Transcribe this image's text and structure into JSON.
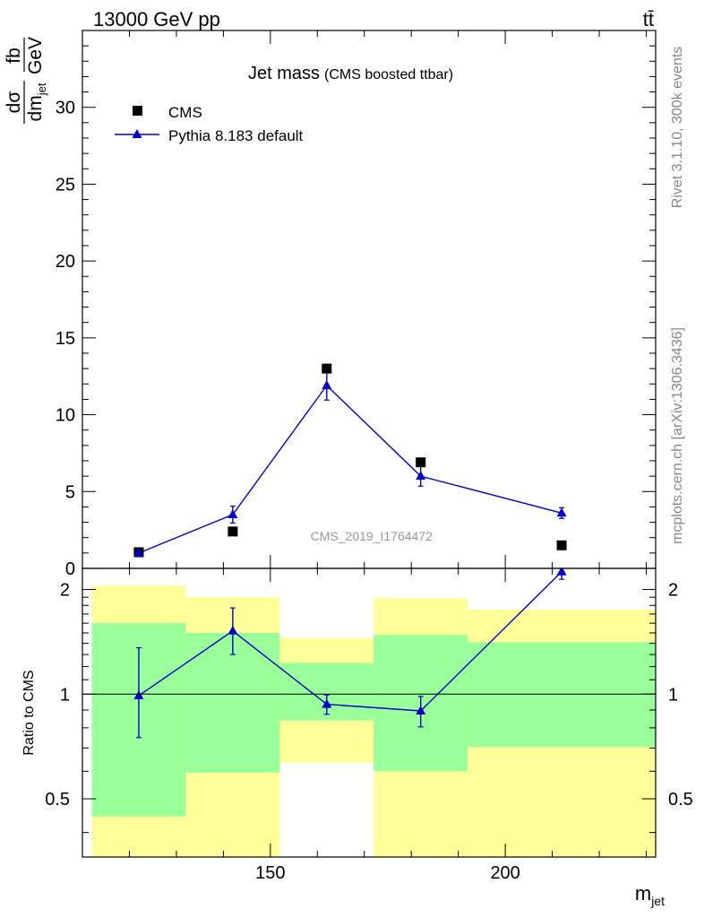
{
  "header": {
    "energy_label": "13000 GeV pp",
    "process_label": "tt̄"
  },
  "side_labels": {
    "rivet": "Rivet 3.1.10,  300k events",
    "mcplots": "mcplots.cern.ch [arXiv:1306.3436]"
  },
  "colors": {
    "mc": "#0000cc",
    "data": "#000000",
    "band_inner": "#99ff99",
    "band_outer": "#ffff99"
  },
  "chart_data": [
    {
      "type": "scatter",
      "panel": "main",
      "title": "Jet mass",
      "subtitle": "(CMS boosted ttbar)",
      "watermark": "CMS_2019_I1764472",
      "ylabel_num": "dσ",
      "ylabel_den": "dm",
      "ylabel_den_sub": "jet",
      "ylabel_unit_num": "fb",
      "ylabel_unit_den": "GeV",
      "xlim": [
        110,
        232
      ],
      "ylim": [
        0,
        35
      ],
      "y_ticks": [
        "0",
        "5",
        "10",
        "15",
        "20",
        "25",
        "30"
      ],
      "legend_position": "top-left",
      "series": [
        {
          "name": "CMS",
          "marker": "square",
          "x": [
            122,
            142,
            162,
            182,
            212
          ],
          "y": [
            1.05,
            2.4,
            13.0,
            6.9,
            1.5
          ]
        },
        {
          "name": "Pythia 8.183 default",
          "marker": "triangle",
          "x": [
            122,
            142,
            162,
            182,
            212
          ],
          "y": [
            1.0,
            3.5,
            11.9,
            6.0,
            3.6
          ],
          "yerr": [
            0.08,
            0.55,
            0.95,
            0.65,
            0.35
          ]
        }
      ]
    },
    {
      "type": "line",
      "panel": "ratio",
      "ylabel": "Ratio to CMS",
      "xlabel": "m",
      "xlabel_sub": "jet",
      "xlim": [
        110,
        232
      ],
      "ylim": [
        0.34,
        2.3
      ],
      "y_ticks": [
        "0.5",
        "1",
        "2"
      ],
      "x_ticks": [
        "150",
        "200"
      ],
      "reference_line": 1,
      "bins": [
        {
          "lo": 112,
          "hi": 132,
          "inner": [
            0.445,
            1.6
          ],
          "outer": [
            0.34,
            2.05
          ]
        },
        {
          "lo": 132,
          "hi": 152,
          "inner": [
            0.595,
            1.5
          ],
          "outer": [
            0.34,
            1.9
          ]
        },
        {
          "lo": 152,
          "hi": 172,
          "inner": [
            0.84,
            1.23
          ],
          "outer": [
            0.635,
            1.45
          ]
        },
        {
          "lo": 172,
          "hi": 192,
          "inner": [
            0.6,
            1.48
          ],
          "outer": [
            0.34,
            1.89
          ]
        },
        {
          "lo": 192,
          "hi": 232,
          "inner": [
            0.705,
            1.41
          ],
          "outer": [
            0.34,
            1.75
          ]
        }
      ],
      "series": [
        {
          "name": "Pythia 8.183 default",
          "marker": "triangle",
          "x": [
            122,
            142,
            162,
            182,
            212
          ],
          "y": [
            0.99,
            1.52,
            0.935,
            0.895,
            2.25
          ],
          "yerr_low": [
            0.24,
            0.22,
            0.06,
            0.09,
            0.11
          ],
          "yerr_high": [
            0.37,
            0.25,
            0.06,
            0.09,
            0.12
          ]
        }
      ]
    }
  ]
}
